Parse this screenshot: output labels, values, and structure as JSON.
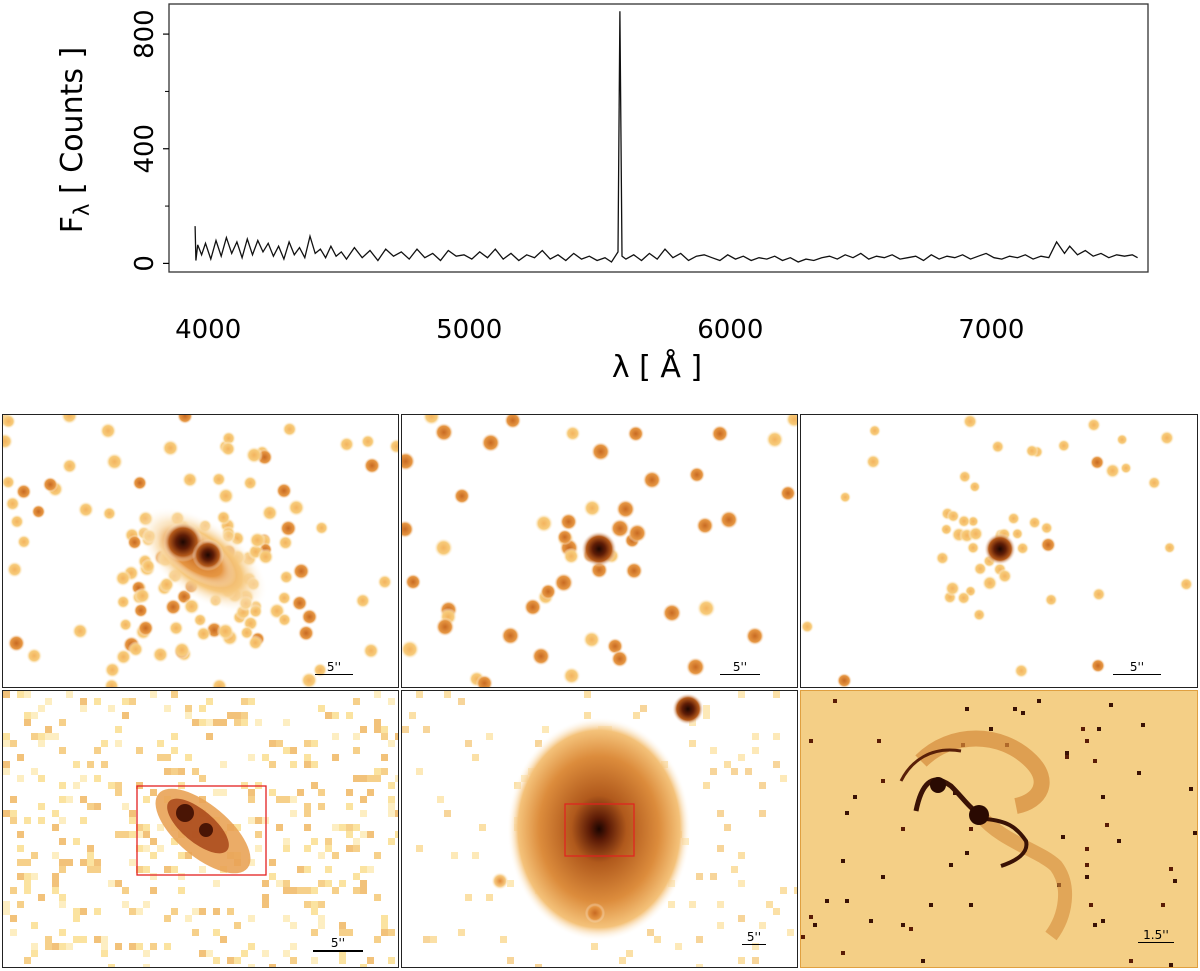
{
  "chart_data": {
    "type": "line",
    "title": "",
    "xlabel": "λ [ Å ]",
    "ylabel": "F",
    "ylabel_sub": "λ",
    "ylabel_rest": " [ Counts ]",
    "xlim": [
      3850,
      7600
    ],
    "ylim": [
      -30,
      905
    ],
    "xticks": [
      4000,
      5000,
      6000,
      7000
    ],
    "yticks": [
      0,
      400,
      800
    ],
    "series": [
      {
        "x": [
          3950,
          3953,
          3960,
          3975,
          3990,
          4010,
          4030,
          4050,
          4070,
          4090,
          4110,
          4130,
          4150,
          4170,
          4190,
          4210,
          4230,
          4250,
          4270,
          4290,
          4310,
          4330,
          4350,
          4370,
          4390,
          4410,
          4430,
          4450,
          4470,
          4490,
          4510,
          4530,
          4560,
          4590,
          4620,
          4650,
          4680,
          4710,
          4740,
          4770,
          4800,
          4830,
          4860,
          4890,
          4920,
          4950,
          4980,
          5010,
          5040,
          5070,
          5100,
          5130,
          5160,
          5190,
          5220,
          5250,
          5280,
          5310,
          5340,
          5370,
          5400,
          5430,
          5460,
          5490,
          5520,
          5545,
          5570,
          5577,
          5585,
          5600,
          5630,
          5660,
          5690,
          5720,
          5750,
          5780,
          5810,
          5840,
          5870,
          5900,
          5930,
          5960,
          5990,
          6020,
          6050,
          6080,
          6110,
          6140,
          6170,
          6200,
          6230,
          6260,
          6290,
          6320,
          6350,
          6380,
          6410,
          6440,
          6470,
          6500,
          6530,
          6560,
          6590,
          6620,
          6650,
          6680,
          6710,
          6740,
          6770,
          6800,
          6830,
          6860,
          6890,
          6920,
          6950,
          6980,
          7010,
          7040,
          7070,
          7100,
          7130,
          7160,
          7190,
          7220,
          7250,
          7280,
          7300,
          7330,
          7360,
          7390,
          7420,
          7450,
          7480,
          7510,
          7540,
          7560
        ],
        "y": [
          130,
          10,
          65,
          30,
          70,
          15,
          80,
          25,
          90,
          35,
          75,
          20,
          85,
          30,
          80,
          40,
          70,
          25,
          60,
          15,
          75,
          30,
          55,
          20,
          95,
          35,
          50,
          20,
          60,
          25,
          40,
          15,
          55,
          20,
          45,
          10,
          50,
          25,
          40,
          15,
          50,
          20,
          35,
          10,
          45,
          25,
          30,
          15,
          40,
          20,
          50,
          15,
          35,
          10,
          30,
          20,
          45,
          15,
          30,
          10,
          35,
          15,
          25,
          10,
          20,
          5,
          40,
          880,
          25,
          15,
          30,
          10,
          35,
          15,
          50,
          20,
          35,
          10,
          25,
          30,
          20,
          10,
          30,
          15,
          25,
          10,
          20,
          15,
          25,
          10,
          20,
          5,
          15,
          10,
          20,
          25,
          15,
          30,
          20,
          35,
          15,
          25,
          20,
          30,
          15,
          20,
          25,
          10,
          30,
          15,
          25,
          20,
          30,
          15,
          25,
          35,
          20,
          15,
          25,
          20,
          30,
          15,
          25,
          20,
          75,
          35,
          60,
          30,
          45,
          25,
          35,
          20,
          30,
          25,
          30,
          20
        ]
      }
    ]
  },
  "panels": {
    "top_row": [
      {
        "scale_label": "5''"
      },
      {
        "scale_label": "5''"
      },
      {
        "scale_label": "5''"
      }
    ],
    "bottom_row": [
      {
        "scale_label": "5''"
      },
      {
        "scale_label": "5''"
      },
      {
        "scale_label": "1.5''"
      }
    ]
  },
  "colors": {
    "background": "#ffffff",
    "blob_light": "#fde9a6",
    "blob_mid": "#f2b56a",
    "blob_dark": "#b5511b",
    "blob_core": "#2a0a02",
    "frame_red": "#e32020",
    "spectrum_line": "#111111"
  }
}
